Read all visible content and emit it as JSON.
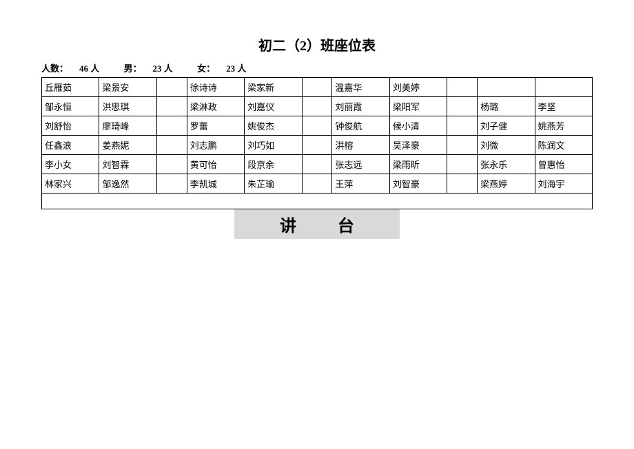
{
  "title": "初二（2）班座位表",
  "stats": {
    "total_label": "人数：",
    "total_value": "46 人",
    "male_label": "男：",
    "male_value": "23 人",
    "female_label": "女：",
    "female_value": "23  人"
  },
  "grid": {
    "columns_per_block": 2,
    "blocks": 4,
    "aisle_width_ratio": 0.6,
    "rows": [
      [
        "丘雁茹",
        "梁景安",
        "",
        "徐诗诗",
        "梁家新",
        "",
        "温嘉华",
        "刘美婷",
        "",
        "",
        ""
      ],
      [
        "邹永恒",
        "洪思琪",
        "",
        "梁淋政",
        "刘嘉仪",
        "",
        "刘丽霞",
        "梁阳军",
        "",
        "杨璐",
        "李坚"
      ],
      [
        "刘舒怡",
        "廖琦峰",
        "",
        "罗蕾",
        "姚俊杰",
        "",
        "钟俊航",
        "候小清",
        "",
        "刘子健",
        "姚燕芳"
      ],
      [
        "任鑫浪",
        "姜燕妮",
        "",
        "刘志鹏",
        "刘巧如",
        "",
        "洪榕",
        "吴泽豪",
        "",
        "刘微",
        "陈润文"
      ],
      [
        "李小女",
        "刘智霖",
        "",
        "黄可怡",
        "段京余",
        "",
        "张志远",
        "梁雨昕",
        "",
        "张永乐",
        "曾惠怡"
      ],
      [
        "林家兴",
        "邹逸然",
        "",
        "李凯城",
        "朱芷瑜",
        "",
        "王萍",
        "刘智豪",
        "",
        "梁燕婷",
        "刘海宇"
      ]
    ]
  },
  "podium": "讲台",
  "colors": {
    "border": "#000000",
    "background": "#ffffff",
    "podium_bg": "#d9d9d9",
    "text": "#000000"
  },
  "fonts": {
    "title_size_pt": 15,
    "body_size_pt": 10,
    "podium_size_pt": 18
  }
}
